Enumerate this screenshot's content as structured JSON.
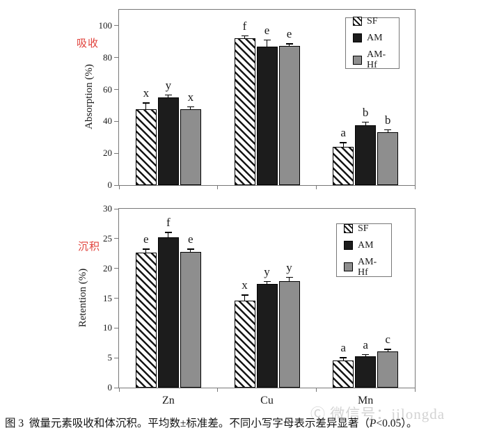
{
  "figure_label": "图 3",
  "caption": {
    "prefix": "图 3  微量元素吸收和体沉积。平均数±标准差。不同小写字母表示差异显著（",
    "p_italic": "P",
    "suffix": "<0.05）。"
  },
  "watermark": {
    "symbol": "Ⓒ",
    "text": "微信号：jilongda"
  },
  "legend": {
    "items": [
      {
        "label": "SF",
        "swatch": "hatch"
      },
      {
        "label": "AM",
        "swatch": "black"
      },
      {
        "label": "AM-Hf",
        "swatch": "gray"
      }
    ]
  },
  "colors": {
    "sf_hatch": "#151515",
    "am_fill": "#1c1c1c",
    "amhf_fill": "#8e8e8e",
    "frame": "#777777",
    "red_panel_label": "#e0403a",
    "watermark_gray": "#d3d3d3"
  },
  "chart_data": [
    {
      "type": "bar",
      "panel_label_cn": "吸收",
      "ylabel": "Absorption (%)",
      "xlabel": "",
      "categories": [
        "Zn",
        "Cu",
        "Mn"
      ],
      "show_category_labels": false,
      "ylim": [
        0,
        110
      ],
      "yticks": [
        0,
        20,
        40,
        60,
        80,
        100
      ],
      "grid": false,
      "legend_position": "upper-right-inside",
      "series": [
        {
          "name": "SF",
          "values": [
            47.5,
            92.0,
            24.0
          ],
          "errors": [
            4.0,
            1.5,
            2.5
          ],
          "letters": [
            "x",
            "f",
            "a"
          ]
        },
        {
          "name": "AM",
          "values": [
            55.0,
            87.0,
            37.5
          ],
          "errors": [
            1.5,
            4.0,
            2.0
          ],
          "letters": [
            "y",
            "e",
            "b"
          ]
        },
        {
          "name": "AM-Hf",
          "values": [
            47.5,
            87.5,
            33.0
          ],
          "errors": [
            1.5,
            1.0,
            1.5
          ],
          "letters": [
            "x",
            "e",
            "b"
          ]
        }
      ]
    },
    {
      "type": "bar",
      "panel_label_cn": "沉积",
      "ylabel": "Retention (%)",
      "xlabel": "",
      "categories": [
        "Zn",
        "Cu",
        "Mn"
      ],
      "show_category_labels": true,
      "ylim": [
        0,
        30
      ],
      "yticks": [
        0,
        5,
        10,
        15,
        20,
        25,
        30
      ],
      "grid": false,
      "legend_position": "upper-right-inside",
      "series": [
        {
          "name": "SF",
          "values": [
            22.7,
            14.6,
            4.6
          ],
          "errors": [
            0.5,
            0.9,
            0.4
          ],
          "letters": [
            "e",
            "x",
            "a"
          ]
        },
        {
          "name": "AM",
          "values": [
            25.2,
            17.4,
            5.2
          ],
          "errors": [
            0.8,
            0.4,
            0.3
          ],
          "letters": [
            "f",
            "y",
            "a"
          ]
        },
        {
          "name": "AM-Hf",
          "values": [
            22.8,
            17.9,
            6.1
          ],
          "errors": [
            0.4,
            0.6,
            0.3
          ],
          "letters": [
            "e",
            "y",
            "c"
          ]
        }
      ]
    }
  ]
}
